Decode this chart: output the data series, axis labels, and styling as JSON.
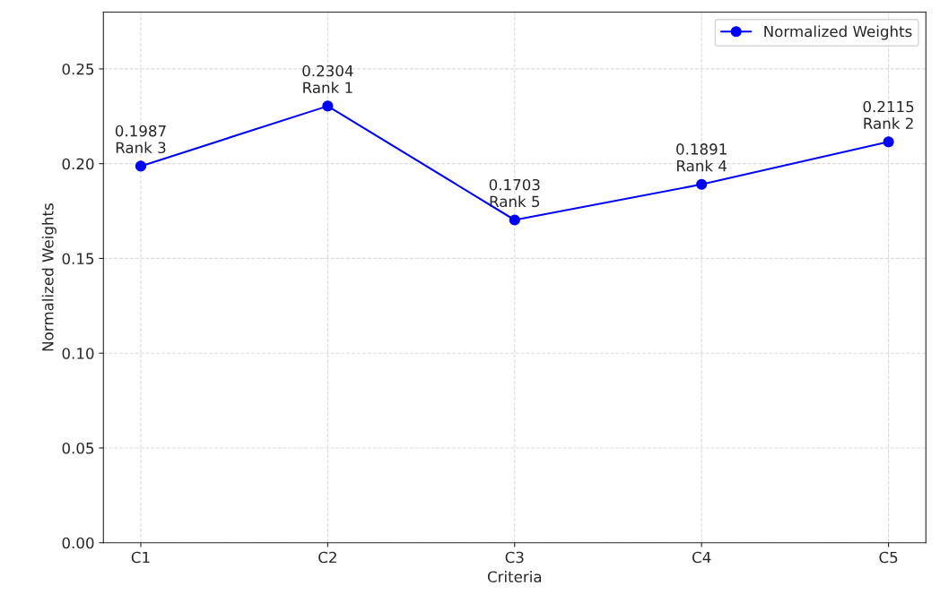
{
  "chart_data": {
    "type": "line",
    "xlabel": "Criteria",
    "ylabel": "Normalized Weights",
    "categories": [
      "C1",
      "C2",
      "C3",
      "C4",
      "C5"
    ],
    "series": [
      {
        "name": "Normalized Weights",
        "color": "#0000ff",
        "values": [
          0.1987,
          0.2304,
          0.1703,
          0.1891,
          0.2115
        ],
        "value_labels": [
          "0.1987\nRank 3",
          "0.2304\nRank 1",
          "0.1703\nRank 5",
          "0.1891\nRank 4",
          "0.2115\nRank 2"
        ]
      }
    ],
    "ylim": [
      0,
      0.28
    ],
    "yticks": [
      {
        "value": 0,
        "label": "0.00"
      },
      {
        "value": 0.05,
        "label": "0.05"
      },
      {
        "value": 0.1,
        "label": "0.10"
      },
      {
        "value": 0.15,
        "label": "0.15"
      },
      {
        "value": 0.2,
        "label": "0.20"
      },
      {
        "value": 0.25,
        "label": "0.25"
      }
    ],
    "grid": true,
    "legend": "top right",
    "marker": "circle",
    "line_style": "solid"
  }
}
